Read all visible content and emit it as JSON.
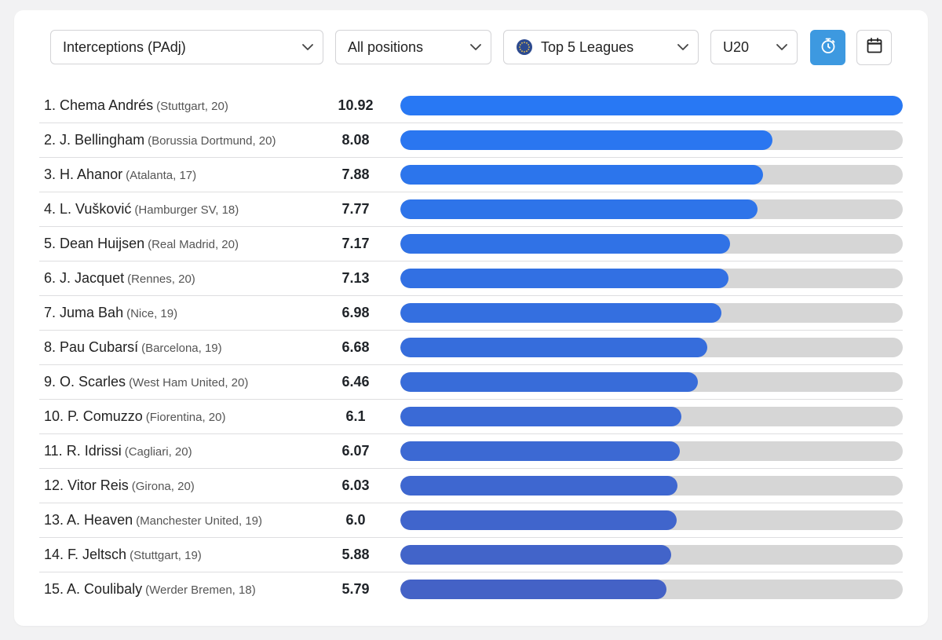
{
  "filters": {
    "metric": "Interceptions (PAdj)",
    "position": "All positions",
    "competition": "Top 5 Leagues",
    "age_group": "U20"
  },
  "icons": {
    "chevron": "chevron-down-icon",
    "competition": "globe-icon",
    "timer": "stopwatch-icon",
    "calendar": "calendar-icon"
  },
  "colors": {
    "accent": "#3d99e0",
    "track": "#d6d6d6",
    "bars": [
      "#2878f4",
      "#2a76f0",
      "#2c75ec",
      "#2e74e9",
      "#3072e6",
      "#3270e3",
      "#346fe0",
      "#366ddc",
      "#386cd9",
      "#3a6ad6",
      "#3c69d3",
      "#3e67d0",
      "#4065cc",
      "#4264c9",
      "#4462c6"
    ]
  },
  "max_value": 10.92,
  "players": [
    {
      "rank": "1.",
      "name": "Chema Andrés",
      "meta": "(Stuttgart, 20)",
      "value": "10.92"
    },
    {
      "rank": "2.",
      "name": "J. Bellingham",
      "meta": "(Borussia Dortmund, 20)",
      "value": "8.08"
    },
    {
      "rank": "3.",
      "name": "H. Ahanor",
      "meta": "(Atalanta, 17)",
      "value": "7.88"
    },
    {
      "rank": "4.",
      "name": "L. Vušković",
      "meta": "(Hamburger SV, 18)",
      "value": "7.77"
    },
    {
      "rank": "5.",
      "name": "Dean Huijsen",
      "meta": "(Real Madrid, 20)",
      "value": "7.17"
    },
    {
      "rank": "6.",
      "name": "J. Jacquet",
      "meta": "(Rennes, 20)",
      "value": "7.13"
    },
    {
      "rank": "7.",
      "name": "Juma Bah",
      "meta": "(Nice, 19)",
      "value": "6.98"
    },
    {
      "rank": "8.",
      "name": "Pau Cubarsí",
      "meta": "(Barcelona, 19)",
      "value": "6.68"
    },
    {
      "rank": "9.",
      "name": "O. Scarles",
      "meta": "(West Ham United, 20)",
      "value": "6.46"
    },
    {
      "rank": "10.",
      "name": "P. Comuzzo",
      "meta": "(Fiorentina, 20)",
      "value": "6.1"
    },
    {
      "rank": "11.",
      "name": "R. Idrissi",
      "meta": "(Cagliari, 20)",
      "value": "6.07"
    },
    {
      "rank": "12.",
      "name": "Vitor Reis",
      "meta": "(Girona, 20)",
      "value": "6.03"
    },
    {
      "rank": "13.",
      "name": "A. Heaven",
      "meta": "(Manchester United, 19)",
      "value": "6.0"
    },
    {
      "rank": "14.",
      "name": "F. Jeltsch",
      "meta": "(Stuttgart, 19)",
      "value": "5.88"
    },
    {
      "rank": "15.",
      "name": "A. Coulibaly",
      "meta": "(Werder Bremen, 18)",
      "value": "5.79"
    }
  ]
}
